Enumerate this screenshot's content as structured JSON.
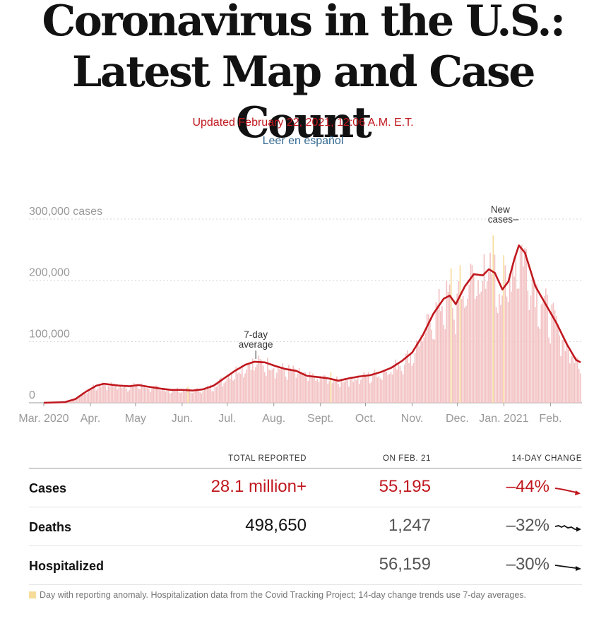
{
  "page": {
    "title_line1": "Coronavirus in the U.S.:",
    "title_line2": "Latest Map and Case Count",
    "updated": "Updated February 22, 2021, 12:06 A.M. E.T.",
    "language_link": "Leer en español"
  },
  "colors": {
    "accent_red": "#c0181e",
    "bar_pink": "#f3c2c3",
    "anomaly_yellow": "#f6dc9a",
    "link_blue": "#326891"
  },
  "chart_data": {
    "type": "bar",
    "title": "",
    "ylabel": "",
    "y_ticks": [
      {
        "value": 0,
        "label": "0"
      },
      {
        "value": 100000,
        "label": "100,000"
      },
      {
        "value": 200000,
        "label": "200,000"
      },
      {
        "value": 300000,
        "label": "300,000 cases"
      }
    ],
    "ylim": [
      0,
      300000
    ],
    "grid": true,
    "x_ticks": [
      {
        "date": "2020-03-01",
        "label": "Mar. 2020"
      },
      {
        "date": "2020-04-01",
        "label": "Apr."
      },
      {
        "date": "2020-05-01",
        "label": "May"
      },
      {
        "date": "2020-06-01",
        "label": "Jun."
      },
      {
        "date": "2020-07-01",
        "label": "Jul."
      },
      {
        "date": "2020-08-01",
        "label": "Aug."
      },
      {
        "date": "2020-09-01",
        "label": "Sept."
      },
      {
        "date": "2020-10-01",
        "label": "Oct."
      },
      {
        "date": "2020-11-01",
        "label": "Nov."
      },
      {
        "date": "2020-12-01",
        "label": "Dec."
      },
      {
        "date": "2021-01-01",
        "label": "Jan. 2021"
      },
      {
        "date": "2021-02-01",
        "label": "Feb."
      }
    ],
    "date_range": [
      "2020-03-01",
      "2021-02-21"
    ],
    "series": [
      {
        "name": "New cases",
        "kind": "bars",
        "color": "#f3c2c3"
      },
      {
        "name": "7-day average",
        "kind": "line",
        "color": "#c0181e"
      }
    ],
    "seven_day_average_keypoints": [
      [
        "2020-03-01",
        0
      ],
      [
        "2020-03-15",
        1000
      ],
      [
        "2020-03-22",
        6000
      ],
      [
        "2020-03-29",
        18000
      ],
      [
        "2020-04-05",
        28000
      ],
      [
        "2020-04-10",
        31000
      ],
      [
        "2020-04-20",
        28000
      ],
      [
        "2020-04-27",
        27000
      ],
      [
        "2020-05-03",
        29000
      ],
      [
        "2020-05-10",
        26000
      ],
      [
        "2020-05-18",
        23000
      ],
      [
        "2020-05-25",
        21000
      ],
      [
        "2020-06-01",
        21000
      ],
      [
        "2020-06-08",
        20000
      ],
      [
        "2020-06-15",
        22000
      ],
      [
        "2020-06-22",
        28000
      ],
      [
        "2020-06-29",
        40000
      ],
      [
        "2020-07-06",
        52000
      ],
      [
        "2020-07-13",
        62000
      ],
      [
        "2020-07-19",
        67000
      ],
      [
        "2020-07-26",
        66000
      ],
      [
        "2020-08-02",
        60000
      ],
      [
        "2020-08-09",
        55000
      ],
      [
        "2020-08-16",
        52000
      ],
      [
        "2020-08-23",
        44000
      ],
      [
        "2020-08-30",
        42000
      ],
      [
        "2020-09-06",
        40000
      ],
      [
        "2020-09-13",
        36000
      ],
      [
        "2020-09-20",
        40000
      ],
      [
        "2020-09-27",
        43000
      ],
      [
        "2020-10-04",
        45000
      ],
      [
        "2020-10-11",
        50000
      ],
      [
        "2020-10-18",
        57000
      ],
      [
        "2020-10-25",
        68000
      ],
      [
        "2020-11-01",
        82000
      ],
      [
        "2020-11-08",
        110000
      ],
      [
        "2020-11-15",
        145000
      ],
      [
        "2020-11-22",
        170000
      ],
      [
        "2020-11-26",
        175000
      ],
      [
        "2020-11-30",
        161000
      ],
      [
        "2020-12-06",
        190000
      ],
      [
        "2020-12-12",
        210000
      ],
      [
        "2020-12-18",
        208000
      ],
      [
        "2020-12-22",
        218000
      ],
      [
        "2020-12-26",
        212000
      ],
      [
        "2020-12-31",
        185000
      ],
      [
        "2021-01-04",
        198000
      ],
      [
        "2021-01-08",
        235000
      ],
      [
        "2021-01-11",
        257000
      ],
      [
        "2021-01-15",
        245000
      ],
      [
        "2021-01-22",
        190000
      ],
      [
        "2021-01-29",
        160000
      ],
      [
        "2021-02-05",
        130000
      ],
      [
        "2021-02-12",
        95000
      ],
      [
        "2021-02-18",
        70000
      ],
      [
        "2021-02-21",
        66000
      ]
    ],
    "anomaly_dates": [
      "2020-06-05",
      "2020-09-08",
      "2020-11-27",
      "2020-12-03",
      "2020-12-25",
      "2021-01-01"
    ],
    "annotations": [
      {
        "label_line1": "7-day",
        "label_line2": "average",
        "date": "2020-07-20"
      },
      {
        "label_line1": "New",
        "label_line2": "cases",
        "date": "2021-01-08"
      }
    ]
  },
  "table": {
    "headers": {
      "col1": "TOTAL REPORTED",
      "col2": "ON FEB. 21",
      "col3": "14-DAY CHANGE"
    },
    "rows": [
      {
        "label": "Cases",
        "total": "28.1 million+",
        "on_day": "55,195",
        "change": "–44%",
        "trend": "down-steep",
        "color": "#c0181e"
      },
      {
        "label": "Deaths",
        "total": "498,650",
        "on_day": "1,247",
        "change": "–32%",
        "trend": "down-wavy",
        "color": "#121212"
      },
      {
        "label": "Hospitalized",
        "total": "",
        "on_day": "56,159",
        "change": "–30%",
        "trend": "down-gentle",
        "color": "#121212"
      }
    ]
  },
  "footnote": {
    "text": "Day with reporting anomaly. Hospitalization data from the Covid Tracking Project; 14-day change trends use 7-day averages."
  }
}
